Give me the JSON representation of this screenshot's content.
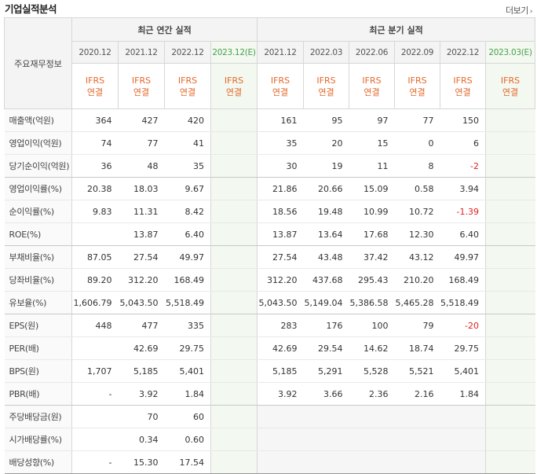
{
  "title": "기업실적분석",
  "more_label": "더보기",
  "more_icon": "chevron-right-icon",
  "header": {
    "row_label": "주요재무정보",
    "annual_label": "최근 연간 실적",
    "quarterly_label": "최근 분기 실적",
    "periods": [
      "2020.12",
      "2021.12",
      "2022.12",
      "2023.12(E)",
      "2021.12",
      "2022.03",
      "2022.06",
      "2022.09",
      "2022.12",
      "2023.03(E)"
    ],
    "std_line1": "IFRS",
    "std_line2": "연결"
  },
  "rows": [
    {
      "label": "매출액(억원)",
      "values": [
        "364",
        "427",
        "420",
        "",
        "161",
        "95",
        "97",
        "77",
        "150",
        ""
      ]
    },
    {
      "label": "영업이익(억원)",
      "values": [
        "74",
        "77",
        "41",
        "",
        "35",
        "20",
        "15",
        "0",
        "6",
        ""
      ]
    },
    {
      "label": "당기순이익(억원)",
      "values": [
        "36",
        "48",
        "35",
        "",
        "30",
        "19",
        "11",
        "8",
        "-2",
        ""
      ]
    },
    {
      "label": "영업이익률(%)",
      "values": [
        "20.38",
        "18.03",
        "9.67",
        "",
        "21.86",
        "20.66",
        "15.09",
        "0.58",
        "3.94",
        ""
      ]
    },
    {
      "label": "순이익률(%)",
      "values": [
        "9.83",
        "11.31",
        "8.42",
        "",
        "18.56",
        "19.48",
        "10.99",
        "10.72",
        "-1.39",
        ""
      ]
    },
    {
      "label": "ROE(%)",
      "values": [
        "",
        "13.87",
        "6.40",
        "",
        "13.87",
        "13.64",
        "17.68",
        "12.30",
        "6.40",
        ""
      ]
    },
    {
      "label": "부채비율(%)",
      "values": [
        "87.05",
        "27.54",
        "49.97",
        "",
        "27.54",
        "43.48",
        "37.42",
        "43.12",
        "49.97",
        ""
      ]
    },
    {
      "label": "당좌비율(%)",
      "values": [
        "89.20",
        "312.20",
        "168.49",
        "",
        "312.20",
        "437.68",
        "295.43",
        "210.20",
        "168.49",
        ""
      ]
    },
    {
      "label": "유보율(%)",
      "values": [
        "1,606.79",
        "5,043.50",
        "5,518.49",
        "",
        "5,043.50",
        "5,149.04",
        "5,386.58",
        "5,465.28",
        "5,518.49",
        ""
      ]
    },
    {
      "label": "EPS(원)",
      "values": [
        "448",
        "477",
        "335",
        "",
        "283",
        "176",
        "100",
        "79",
        "-20",
        ""
      ]
    },
    {
      "label": "PER(배)",
      "values": [
        "",
        "42.69",
        "29.75",
        "",
        "42.69",
        "29.54",
        "14.62",
        "18.74",
        "29.75",
        ""
      ]
    },
    {
      "label": "BPS(원)",
      "values": [
        "1,707",
        "5,185",
        "5,401",
        "",
        "5,185",
        "5,291",
        "5,528",
        "5,521",
        "5,401",
        ""
      ]
    },
    {
      "label": "PBR(배)",
      "values": [
        "-",
        "3.92",
        "1.84",
        "",
        "3.92",
        "3.66",
        "2.36",
        "2.16",
        "1.84",
        ""
      ]
    },
    {
      "label": "주당배당금(원)",
      "values": [
        "",
        "70",
        "60",
        "",
        "",
        "",
        "",
        "",
        "",
        ""
      ]
    },
    {
      "label": "시가배당률(%)",
      "values": [
        "",
        "0.34",
        "0.60",
        "",
        "",
        "",
        "",
        "",
        "",
        ""
      ]
    },
    {
      "label": "배당성향(%)",
      "values": [
        "-",
        "15.30",
        "17.54",
        "",
        "",
        "",
        "",
        "",
        "",
        ""
      ]
    }
  ],
  "colors": {
    "estimate_bg": "#f3f8f0",
    "estimate_text": "#48a14d",
    "std_text": "#e5672a",
    "negative": "#e02020"
  }
}
